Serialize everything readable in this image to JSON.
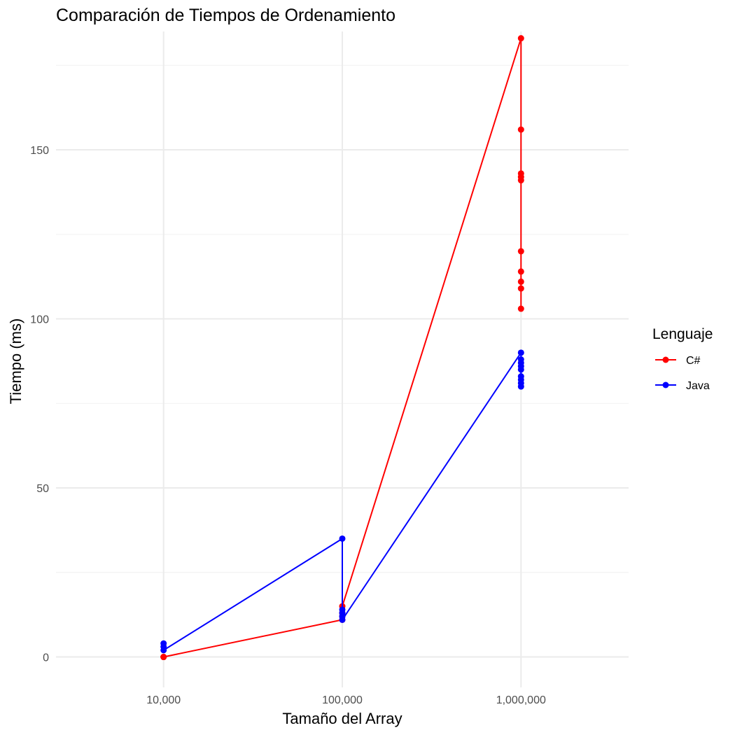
{
  "chart_data": {
    "type": "line",
    "title": "Comparación de Tiempos de Ordenamiento",
    "xlabel": "Tamaño del Array",
    "ylabel": "Tiempo (ms)",
    "x_scale": "log10",
    "x_ticks": [
      10000,
      100000,
      1000000
    ],
    "x_tick_labels": [
      "10,000",
      "100,000",
      "1,000,000"
    ],
    "xlim": [
      2500,
      4000000
    ],
    "ylim": [
      -9,
      185
    ],
    "y_ticks": [
      0,
      50,
      100,
      150
    ],
    "y_tick_labels": [
      "0",
      "50",
      "100",
      "150"
    ],
    "grid": true,
    "legend": {
      "title": "Lenguaje",
      "position": "right"
    },
    "series": [
      {
        "name": "C#",
        "color": "#ff0000",
        "points": [
          {
            "x": 10000,
            "y": 0
          },
          {
            "x": 10000,
            "y": 0
          },
          {
            "x": 10000,
            "y": 0
          },
          {
            "x": 100000,
            "y": 11
          },
          {
            "x": 100000,
            "y": 12
          },
          {
            "x": 100000,
            "y": 13
          },
          {
            "x": 100000,
            "y": 15
          },
          {
            "x": 1000000,
            "y": 183
          },
          {
            "x": 1000000,
            "y": 156
          },
          {
            "x": 1000000,
            "y": 143
          },
          {
            "x": 1000000,
            "y": 142
          },
          {
            "x": 1000000,
            "y": 141
          },
          {
            "x": 1000000,
            "y": 120
          },
          {
            "x": 1000000,
            "y": 114
          },
          {
            "x": 1000000,
            "y": 111
          },
          {
            "x": 1000000,
            "y": 109
          },
          {
            "x": 1000000,
            "y": 103
          }
        ]
      },
      {
        "name": "Java",
        "color": "#0000ff",
        "points": [
          {
            "x": 10000,
            "y": 4
          },
          {
            "x": 10000,
            "y": 3
          },
          {
            "x": 10000,
            "y": 2
          },
          {
            "x": 100000,
            "y": 35
          },
          {
            "x": 100000,
            "y": 14
          },
          {
            "x": 100000,
            "y": 13
          },
          {
            "x": 100000,
            "y": 12
          },
          {
            "x": 100000,
            "y": 11
          },
          {
            "x": 1000000,
            "y": 90
          },
          {
            "x": 1000000,
            "y": 88
          },
          {
            "x": 1000000,
            "y": 87
          },
          {
            "x": 1000000,
            "y": 86
          },
          {
            "x": 1000000,
            "y": 85
          },
          {
            "x": 1000000,
            "y": 83
          },
          {
            "x": 1000000,
            "y": 82
          },
          {
            "x": 1000000,
            "y": 81
          },
          {
            "x": 1000000,
            "y": 80
          }
        ]
      }
    ]
  }
}
